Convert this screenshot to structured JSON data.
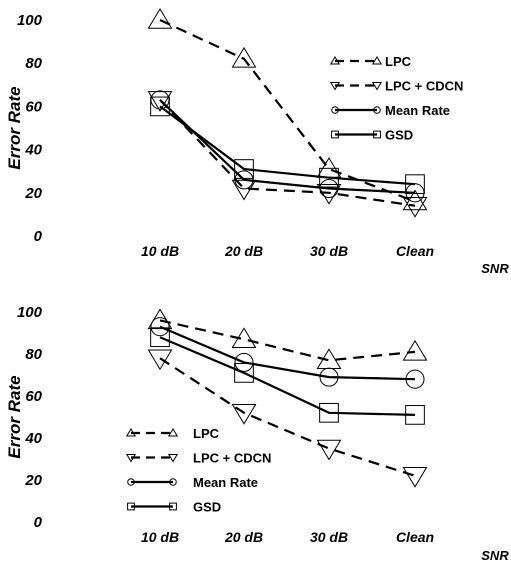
{
  "chart_data": [
    {
      "type": "line",
      "title": "",
      "xlabel": "SNR",
      "ylabel": "Error Rate",
      "ylim": [
        0,
        100
      ],
      "yticks": [
        "0",
        "20",
        "40",
        "60",
        "80",
        "100"
      ],
      "categories": [
        "10 dB",
        "20 dB",
        "30 dB",
        "Clean"
      ],
      "legend_position": "top-right",
      "grid": false,
      "series": [
        {
          "name": "LPC",
          "style": "dashed",
          "marker": "triangle-up",
          "values": [
            100,
            82,
            31,
            16
          ]
        },
        {
          "name": "LPC + CDCN",
          "style": "dashed",
          "marker": "triangle-down",
          "values": [
            63,
            22,
            20,
            14
          ]
        },
        {
          "name": "Mean Rate",
          "style": "solid",
          "marker": "circle",
          "values": [
            63,
            26,
            22,
            20
          ]
        },
        {
          "name": "GSD",
          "style": "solid",
          "marker": "square",
          "values": [
            60,
            31,
            27,
            24
          ]
        }
      ]
    },
    {
      "type": "line",
      "title": "",
      "xlabel": "SNR",
      "ylabel": "Error Rate",
      "ylim": [
        0,
        100
      ],
      "yticks": [
        "0",
        "20",
        "40",
        "60",
        "80",
        "100"
      ],
      "categories": [
        "10 dB",
        "20 dB",
        "30 dB",
        "Clean"
      ],
      "legend_position": "bottom-left",
      "grid": false,
      "series": [
        {
          "name": "LPC",
          "style": "dashed",
          "marker": "triangle-up",
          "values": [
            96,
            87,
            77,
            81
          ]
        },
        {
          "name": "LPC + CDCN",
          "style": "dashed",
          "marker": "triangle-down",
          "values": [
            78,
            52,
            35,
            22
          ]
        },
        {
          "name": "Mean Rate",
          "style": "solid",
          "marker": "circle",
          "values": [
            93,
            76,
            69,
            68
          ]
        },
        {
          "name": "GSD",
          "style": "solid",
          "marker": "square",
          "values": [
            88,
            71,
            52,
            51
          ]
        }
      ]
    }
  ]
}
